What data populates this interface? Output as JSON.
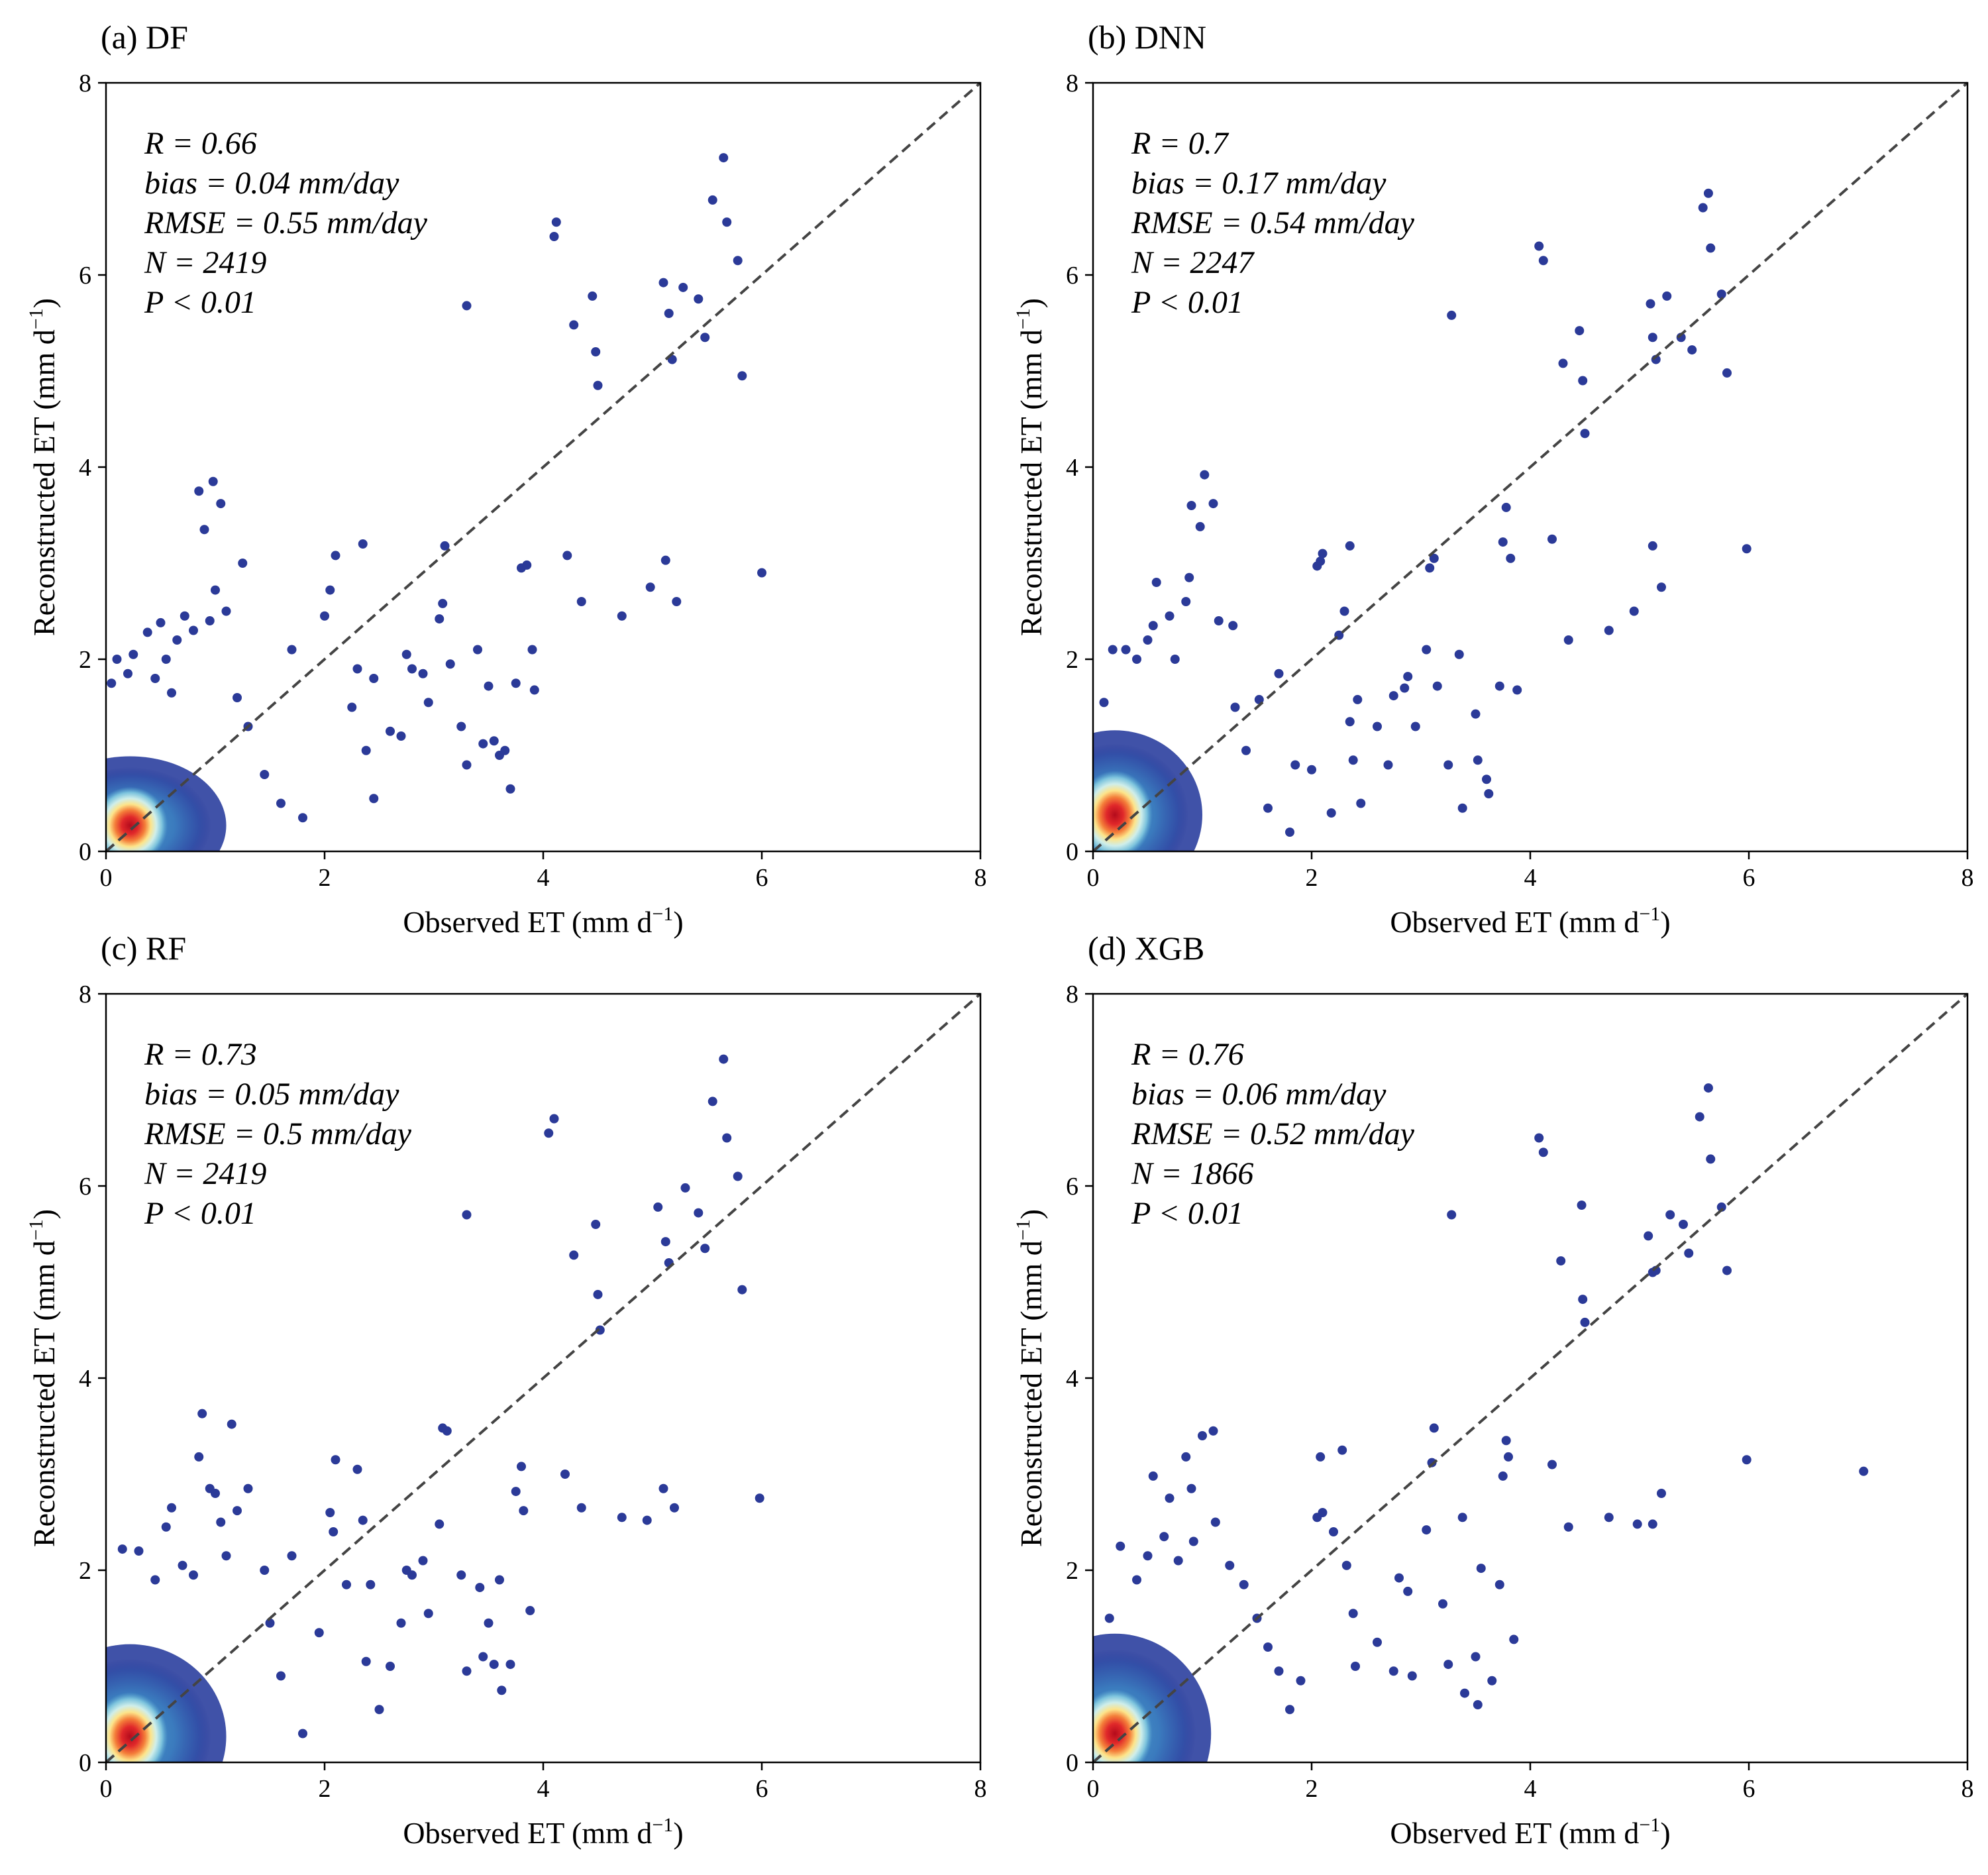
{
  "chart_data": [
    {
      "type": "scatter",
      "title": "(a) DF",
      "xlabel": "Observed ET (mm d",
      "ylabel": "Reconstructed ET (mm d",
      "unit_exponent": "−1",
      "xlim": [
        0,
        8
      ],
      "ylim": [
        0,
        8
      ],
      "ticks": [
        "0",
        "2",
        "4",
        "6",
        "8"
      ],
      "reference_line": "1:1",
      "stats": [
        "R = 0.66",
        "bias = 0.04 mm/day",
        "RMSE = 0.55 mm/day",
        "N = 2419",
        "P < 0.01"
      ],
      "density_core": {
        "x": 0.22,
        "y": 0.27,
        "spread_x": 0.3,
        "spread_y": 0.35,
        "spread_x_outer": 0.55,
        "spread_y_outer": 0.45
      },
      "points": [
        [
          0.05,
          1.75
        ],
        [
          0.1,
          2.0
        ],
        [
          0.2,
          1.85
        ],
        [
          0.25,
          2.05
        ],
        [
          0.38,
          2.28
        ],
        [
          0.45,
          1.8
        ],
        [
          0.5,
          2.38
        ],
        [
          0.55,
          2.0
        ],
        [
          0.6,
          1.65
        ],
        [
          0.65,
          2.2
        ],
        [
          0.72,
          2.45
        ],
        [
          0.8,
          2.3
        ],
        [
          0.85,
          3.75
        ],
        [
          0.9,
          3.35
        ],
        [
          0.98,
          3.85
        ],
        [
          1.05,
          3.62
        ],
        [
          1.0,
          2.72
        ],
        [
          0.95,
          2.4
        ],
        [
          1.1,
          2.5
        ],
        [
          1.2,
          1.6
        ],
        [
          1.25,
          3.0
        ],
        [
          1.3,
          1.3
        ],
        [
          1.45,
          0.8
        ],
        [
          1.6,
          0.5
        ],
        [
          1.7,
          2.1
        ],
        [
          1.8,
          0.35
        ],
        [
          2.0,
          2.45
        ],
        [
          2.05,
          2.72
        ],
        [
          2.1,
          3.08
        ],
        [
          2.25,
          1.5
        ],
        [
          2.3,
          1.9
        ],
        [
          2.35,
          3.2
        ],
        [
          2.45,
          1.8
        ],
        [
          2.38,
          1.05
        ],
        [
          2.45,
          0.55
        ],
        [
          2.6,
          1.25
        ],
        [
          2.7,
          1.2
        ],
        [
          2.75,
          2.05
        ],
        [
          2.8,
          1.9
        ],
        [
          2.9,
          1.85
        ],
        [
          2.95,
          1.55
        ],
        [
          3.05,
          2.42
        ],
        [
          3.08,
          2.58
        ],
        [
          3.1,
          3.18
        ],
        [
          3.15,
          1.95
        ],
        [
          3.25,
          1.3
        ],
        [
          3.3,
          0.9
        ],
        [
          3.3,
          5.68
        ],
        [
          3.4,
          2.1
        ],
        [
          3.45,
          1.12
        ],
        [
          3.5,
          1.72
        ],
        [
          3.55,
          1.15
        ],
        [
          3.6,
          1.0
        ],
        [
          3.65,
          1.05
        ],
        [
          3.7,
          0.65
        ],
        [
          3.75,
          1.75
        ],
        [
          3.8,
          2.95
        ],
        [
          3.85,
          2.98
        ],
        [
          3.9,
          2.1
        ],
        [
          3.92,
          1.68
        ],
        [
          4.1,
          6.4
        ],
        [
          4.12,
          6.55
        ],
        [
          4.22,
          3.08
        ],
        [
          4.28,
          5.48
        ],
        [
          4.35,
          2.6
        ],
        [
          4.45,
          5.78
        ],
        [
          4.48,
          5.2
        ],
        [
          4.5,
          4.85
        ],
        [
          4.72,
          2.45
        ],
        [
          4.98,
          2.75
        ],
        [
          5.1,
          5.92
        ],
        [
          5.12,
          3.03
        ],
        [
          5.15,
          5.6
        ],
        [
          5.18,
          5.12
        ],
        [
          5.22,
          2.6
        ],
        [
          5.28,
          5.87
        ],
        [
          5.42,
          5.75
        ],
        [
          5.48,
          5.35
        ],
        [
          5.55,
          6.78
        ],
        [
          5.65,
          7.22
        ],
        [
          5.68,
          6.55
        ],
        [
          5.78,
          6.15
        ],
        [
          5.82,
          4.95
        ],
        [
          6.0,
          2.9
        ]
      ]
    },
    {
      "type": "scatter",
      "title": "(b) DNN",
      "xlabel": "Observed ET (mm d",
      "ylabel": "Reconstructed ET (mm d",
      "unit_exponent": "−1",
      "xlim": [
        0,
        8
      ],
      "ylim": [
        0,
        8
      ],
      "ticks": [
        "0",
        "2",
        "4",
        "6",
        "8"
      ],
      "reference_line": "1:1",
      "stats": [
        "R = 0.7",
        "bias = 0.17 mm/day",
        "RMSE = 0.54 mm/day",
        "N = 2247",
        "P < 0.01"
      ],
      "density_core": {
        "x": 0.2,
        "y": 0.38,
        "spread_x": 0.3,
        "spread_y": 0.4,
        "spread_x_outer": 0.5,
        "spread_y_outer": 0.55
      },
      "points": [
        [
          0.1,
          1.55
        ],
        [
          0.18,
          2.1
        ],
        [
          0.3,
          2.1
        ],
        [
          0.4,
          2.0
        ],
        [
          0.5,
          2.2
        ],
        [
          0.55,
          2.35
        ],
        [
          0.58,
          2.8
        ],
        [
          0.7,
          2.45
        ],
        [
          0.75,
          2.0
        ],
        [
          0.85,
          2.6
        ],
        [
          0.88,
          2.85
        ],
        [
          0.9,
          3.6
        ],
        [
          0.98,
          3.38
        ],
        [
          1.02,
          3.92
        ],
        [
          1.1,
          3.62
        ],
        [
          1.15,
          2.4
        ],
        [
          1.28,
          2.35
        ],
        [
          1.3,
          1.5
        ],
        [
          1.4,
          1.05
        ],
        [
          1.52,
          1.58
        ],
        [
          1.6,
          0.45
        ],
        [
          1.7,
          1.85
        ],
        [
          1.8,
          0.2
        ],
        [
          1.85,
          0.9
        ],
        [
          2.0,
          0.85
        ],
        [
          2.05,
          2.97
        ],
        [
          2.08,
          3.02
        ],
        [
          2.1,
          3.1
        ],
        [
          2.18,
          0.4
        ],
        [
          2.25,
          2.25
        ],
        [
          2.3,
          2.5
        ],
        [
          2.35,
          1.35
        ],
        [
          2.35,
          3.18
        ],
        [
          2.38,
          0.95
        ],
        [
          2.42,
          1.58
        ],
        [
          2.45,
          0.5
        ],
        [
          2.6,
          1.3
        ],
        [
          2.7,
          0.9
        ],
        [
          2.75,
          1.62
        ],
        [
          2.85,
          1.7
        ],
        [
          2.88,
          1.82
        ],
        [
          2.95,
          1.3
        ],
        [
          3.05,
          2.1
        ],
        [
          3.08,
          2.95
        ],
        [
          3.12,
          3.05
        ],
        [
          3.15,
          1.72
        ],
        [
          3.25,
          0.9
        ],
        [
          3.28,
          5.58
        ],
        [
          3.35,
          2.05
        ],
        [
          3.38,
          0.45
        ],
        [
          3.5,
          1.43
        ],
        [
          3.52,
          0.95
        ],
        [
          3.6,
          0.75
        ],
        [
          3.62,
          0.6
        ],
        [
          3.72,
          1.72
        ],
        [
          3.75,
          3.22
        ],
        [
          3.78,
          3.58
        ],
        [
          3.82,
          3.05
        ],
        [
          3.88,
          1.68
        ],
        [
          4.08,
          6.3
        ],
        [
          4.12,
          6.15
        ],
        [
          4.2,
          3.25
        ],
        [
          4.3,
          5.08
        ],
        [
          4.35,
          2.2
        ],
        [
          4.45,
          5.42
        ],
        [
          4.48,
          4.9
        ],
        [
          4.5,
          4.35
        ],
        [
          4.72,
          2.3
        ],
        [
          4.95,
          2.5
        ],
        [
          5.1,
          5.7
        ],
        [
          5.12,
          3.18
        ],
        [
          5.12,
          5.35
        ],
        [
          5.15,
          5.12
        ],
        [
          5.2,
          2.75
        ],
        [
          5.25,
          5.78
        ],
        [
          5.38,
          5.35
        ],
        [
          5.48,
          5.22
        ],
        [
          5.58,
          6.7
        ],
        [
          5.63,
          6.85
        ],
        [
          5.65,
          6.28
        ],
        [
          5.75,
          5.8
        ],
        [
          5.8,
          4.98
        ],
        [
          5.98,
          3.15
        ]
      ]
    },
    {
      "type": "scatter",
      "title": "(c) RF",
      "xlabel": "Observed ET (mm d",
      "ylabel": "Reconstructed ET (mm d",
      "unit_exponent": "−1",
      "xlim": [
        0,
        8
      ],
      "ylim": [
        0,
        8
      ],
      "ticks": [
        "0",
        "2",
        "4",
        "6",
        "8"
      ],
      "reference_line": "1:1",
      "stats": [
        "R = 0.73",
        "bias = 0.05 mm/day",
        "RMSE = 0.5 mm/day",
        "N = 2419",
        "P < 0.01"
      ],
      "density_core": {
        "x": 0.22,
        "y": 0.27,
        "spread_x": 0.3,
        "spread_y": 0.4,
        "spread_x_outer": 0.55,
        "spread_y_outer": 0.6
      },
      "points": [
        [
          0.15,
          2.22
        ],
        [
          0.3,
          2.2
        ],
        [
          0.45,
          1.9
        ],
        [
          0.55,
          2.45
        ],
        [
          0.6,
          2.65
        ],
        [
          0.7,
          2.05
        ],
        [
          0.8,
          1.95
        ],
        [
          0.85,
          3.18
        ],
        [
          0.88,
          3.63
        ],
        [
          0.95,
          2.85
        ],
        [
          1.0,
          2.8
        ],
        [
          1.05,
          2.5
        ],
        [
          1.1,
          2.15
        ],
        [
          1.15,
          3.52
        ],
        [
          1.2,
          2.62
        ],
        [
          1.3,
          2.85
        ],
        [
          1.45,
          2.0
        ],
        [
          1.5,
          1.45
        ],
        [
          1.6,
          0.9
        ],
        [
          1.7,
          2.15
        ],
        [
          1.8,
          0.3
        ],
        [
          1.95,
          1.35
        ],
        [
          2.05,
          2.6
        ],
        [
          2.08,
          2.4
        ],
        [
          2.1,
          3.15
        ],
        [
          2.2,
          1.85
        ],
        [
          2.3,
          3.05
        ],
        [
          2.35,
          2.52
        ],
        [
          2.38,
          1.05
        ],
        [
          2.42,
          1.85
        ],
        [
          2.5,
          0.55
        ],
        [
          2.6,
          1.0
        ],
        [
          2.7,
          1.45
        ],
        [
          2.75,
          2.0
        ],
        [
          2.8,
          1.95
        ],
        [
          2.9,
          2.1
        ],
        [
          2.95,
          1.55
        ],
        [
          3.05,
          2.48
        ],
        [
          3.08,
          3.48
        ],
        [
          3.12,
          3.45
        ],
        [
          3.25,
          1.95
        ],
        [
          3.3,
          5.7
        ],
        [
          3.3,
          0.95
        ],
        [
          3.42,
          1.82
        ],
        [
          3.45,
          1.1
        ],
        [
          3.5,
          1.45
        ],
        [
          3.55,
          1.02
        ],
        [
          3.6,
          1.9
        ],
        [
          3.62,
          0.75
        ],
        [
          3.7,
          1.02
        ],
        [
          3.75,
          2.82
        ],
        [
          3.8,
          3.08
        ],
        [
          3.82,
          2.62
        ],
        [
          3.88,
          1.58
        ],
        [
          4.05,
          6.55
        ],
        [
          4.1,
          6.7
        ],
        [
          4.2,
          3.0
        ],
        [
          4.28,
          5.28
        ],
        [
          4.35,
          2.65
        ],
        [
          4.48,
          5.6
        ],
        [
          4.5,
          4.87
        ],
        [
          4.52,
          4.5
        ],
        [
          4.72,
          2.55
        ],
        [
          4.95,
          2.52
        ],
        [
          5.05,
          5.78
        ],
        [
          5.1,
          2.85
        ],
        [
          5.12,
          5.42
        ],
        [
          5.15,
          5.2
        ],
        [
          5.2,
          2.65
        ],
        [
          5.3,
          5.98
        ],
        [
          5.42,
          5.72
        ],
        [
          5.48,
          5.35
        ],
        [
          5.55,
          6.88
        ],
        [
          5.65,
          7.32
        ],
        [
          5.68,
          6.5
        ],
        [
          5.78,
          6.1
        ],
        [
          5.82,
          4.92
        ],
        [
          5.98,
          2.75
        ]
      ]
    },
    {
      "type": "scatter",
      "title": "(d) XGB",
      "xlabel": "Observed ET (mm d",
      "ylabel": "Reconstructed ET (mm d",
      "unit_exponent": "−1",
      "xlim": [
        0,
        8
      ],
      "ylim": [
        0,
        8
      ],
      "ticks": [
        "0",
        "2",
        "4",
        "6",
        "8"
      ],
      "reference_line": "1:1",
      "stats": [
        "R = 0.76",
        "bias = 0.06 mm/day",
        "RMSE = 0.52 mm/day",
        "N = 1866",
        "P < 0.01"
      ],
      "density_core": {
        "x": 0.2,
        "y": 0.3,
        "spread_x": 0.3,
        "spread_y": 0.4,
        "spread_x_outer": 0.55,
        "spread_y_outer": 0.65
      },
      "points": [
        [
          0.15,
          1.5
        ],
        [
          0.25,
          2.25
        ],
        [
          0.4,
          1.9
        ],
        [
          0.5,
          2.15
        ],
        [
          0.55,
          2.98
        ],
        [
          0.65,
          2.35
        ],
        [
          0.7,
          2.75
        ],
        [
          0.78,
          2.1
        ],
        [
          0.85,
          3.18
        ],
        [
          0.9,
          2.85
        ],
        [
          0.92,
          2.3
        ],
        [
          1.0,
          3.4
        ],
        [
          1.1,
          3.45
        ],
        [
          1.12,
          2.5
        ],
        [
          1.25,
          2.05
        ],
        [
          1.38,
          1.85
        ],
        [
          1.5,
          1.5
        ],
        [
          1.6,
          1.2
        ],
        [
          1.7,
          0.95
        ],
        [
          1.8,
          0.55
        ],
        [
          1.9,
          0.85
        ],
        [
          2.05,
          2.55
        ],
        [
          2.08,
          3.18
        ],
        [
          2.1,
          2.6
        ],
        [
          2.2,
          2.4
        ],
        [
          2.28,
          3.25
        ],
        [
          2.32,
          2.05
        ],
        [
          2.38,
          1.55
        ],
        [
          2.4,
          1.0
        ],
        [
          2.6,
          1.25
        ],
        [
          2.75,
          0.95
        ],
        [
          2.8,
          1.92
        ],
        [
          2.88,
          1.78
        ],
        [
          2.92,
          0.9
        ],
        [
          3.05,
          2.42
        ],
        [
          3.1,
          3.12
        ],
        [
          3.12,
          3.48
        ],
        [
          3.2,
          1.65
        ],
        [
          3.25,
          1.02
        ],
        [
          3.28,
          5.7
        ],
        [
          3.38,
          2.55
        ],
        [
          3.4,
          0.72
        ],
        [
          3.5,
          1.1
        ],
        [
          3.52,
          0.6
        ],
        [
          3.55,
          2.02
        ],
        [
          3.65,
          0.85
        ],
        [
          3.72,
          1.85
        ],
        [
          3.75,
          2.98
        ],
        [
          3.78,
          3.35
        ],
        [
          3.8,
          3.18
        ],
        [
          3.85,
          1.28
        ],
        [
          4.08,
          6.5
        ],
        [
          4.12,
          6.35
        ],
        [
          4.2,
          3.1
        ],
        [
          4.28,
          5.22
        ],
        [
          4.35,
          2.45
        ],
        [
          4.47,
          5.8
        ],
        [
          4.48,
          4.82
        ],
        [
          4.5,
          4.58
        ],
        [
          4.72,
          2.55
        ],
        [
          4.98,
          2.48
        ],
        [
          5.08,
          5.48
        ],
        [
          5.12,
          2.48
        ],
        [
          5.12,
          5.1
        ],
        [
          5.15,
          5.12
        ],
        [
          5.2,
          2.8
        ],
        [
          5.28,
          5.7
        ],
        [
          5.4,
          5.6
        ],
        [
          5.45,
          5.3
        ],
        [
          5.55,
          6.72
        ],
        [
          5.63,
          7.02
        ],
        [
          5.65,
          6.28
        ],
        [
          5.75,
          5.78
        ],
        [
          5.8,
          5.12
        ],
        [
          5.98,
          3.15
        ],
        [
          7.05,
          3.03
        ]
      ]
    }
  ]
}
